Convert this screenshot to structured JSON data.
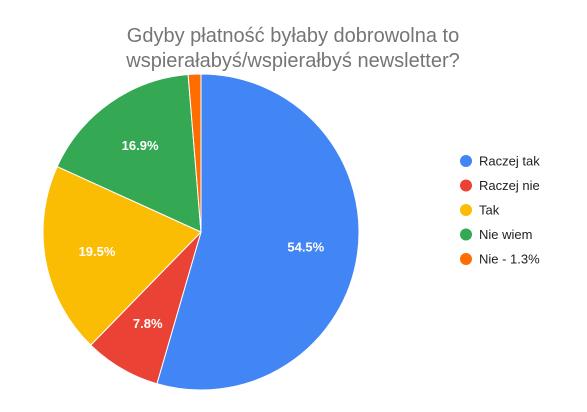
{
  "chart_data": {
    "type": "pie",
    "title_lines": [
      "Gdyby płatność byłaby dobrowolna to",
      "wspierałabyś/wspierałbyś newsletter?"
    ],
    "categories": [
      "Raczej tak",
      "Raczej nie",
      "Tak",
      "Nie wiem",
      "Nie - 1.3%"
    ],
    "values": [
      54.5,
      7.8,
      19.5,
      16.9,
      1.3
    ],
    "data_labels": [
      "54.5%",
      "7.8%",
      "19.5%",
      "16.9%",
      ""
    ],
    "colors": [
      "#4285f4",
      "#ea4335",
      "#fbbc04",
      "#34a853",
      "#ff6d01"
    ],
    "start_angle_deg": 0,
    "direction": "clockwise",
    "legend_position": "right"
  }
}
